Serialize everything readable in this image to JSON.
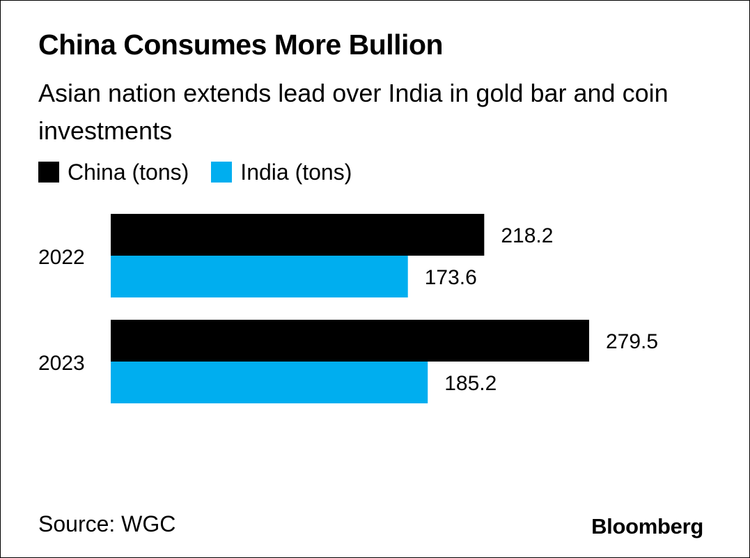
{
  "header": {
    "title": "China Consumes More Bullion",
    "subtitle": "Asian nation extends lead over India in gold bar and coin investments"
  },
  "footer": {
    "source": "Source: WGC",
    "brand": "Bloomberg"
  },
  "colors": {
    "china": "#000000",
    "india": "#00aeef"
  },
  "chart_data": {
    "type": "bar",
    "orientation": "horizontal",
    "title": "China Consumes More Bullion",
    "subtitle": "Asian nation extends lead over India in gold bar and coin investments",
    "categories": [
      "2022",
      "2023"
    ],
    "series": [
      {
        "name": "China (tons)",
        "color": "#000000",
        "values": [
          218.2,
          279.5
        ],
        "labels": [
          "218.2",
          "279.5"
        ]
      },
      {
        "name": "India (tons)",
        "color": "#00aeef",
        "values": [
          173.6,
          185.2
        ],
        "labels": [
          "173.6",
          "185.2"
        ]
      }
    ],
    "xlim": [
      0,
      300
    ],
    "grid": false,
    "legend_position": "top-left"
  }
}
